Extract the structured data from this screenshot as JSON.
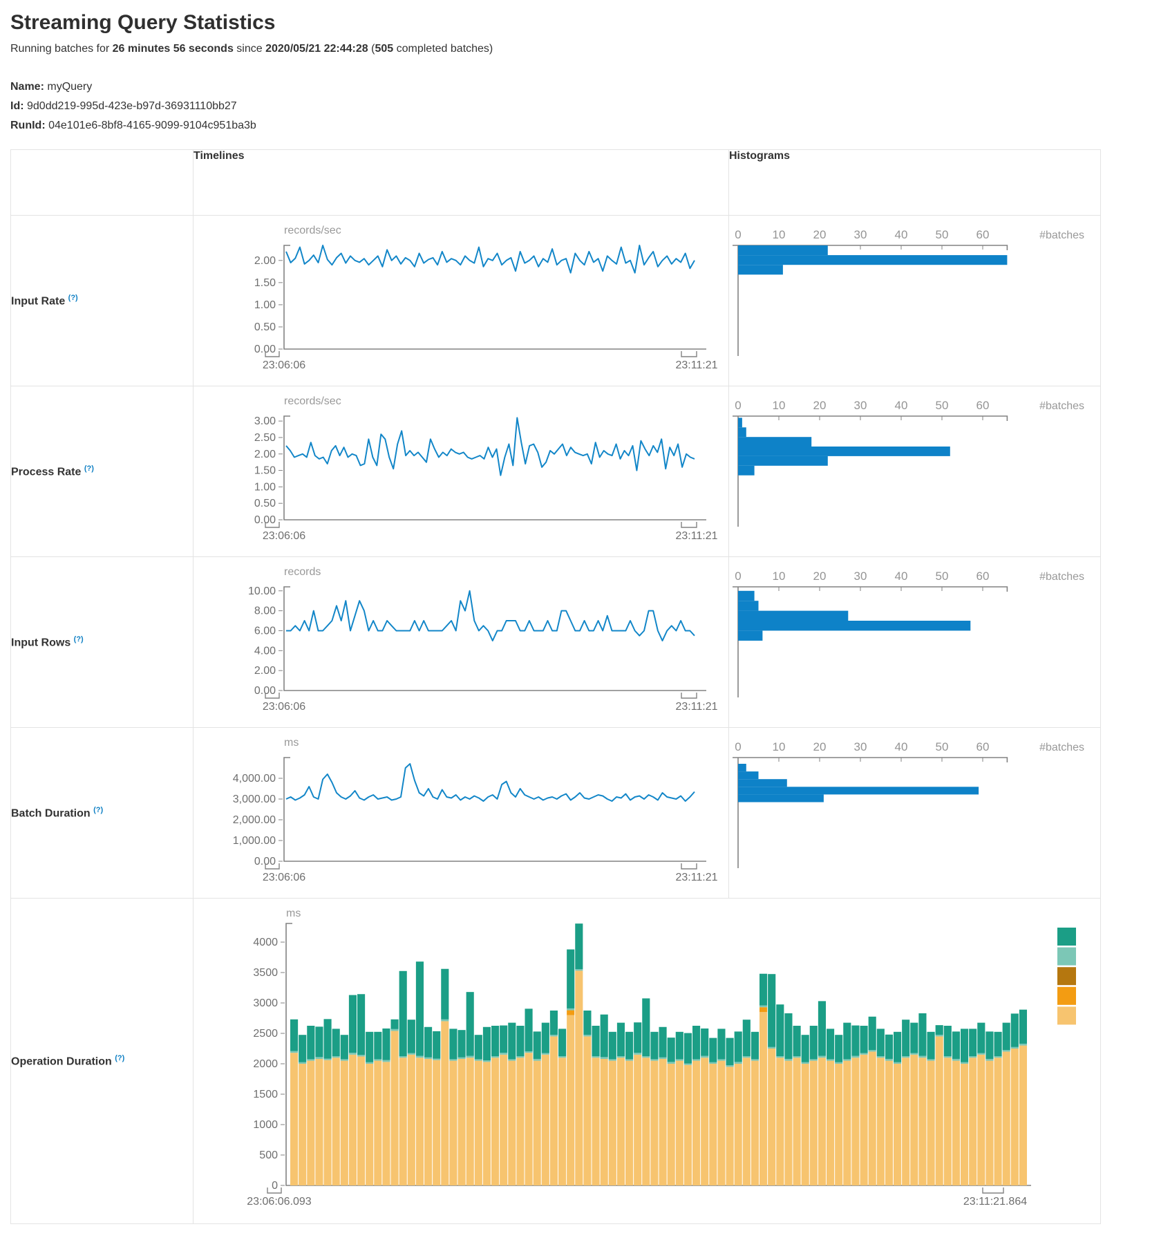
{
  "header": {
    "title": "Streaming Query Statistics",
    "running_prefix": "Running batches for",
    "duration": "26 minutes 56 seconds",
    "since_word": "since",
    "start_time": "2020/05/21 22:44:28",
    "paren_open": "(",
    "completed_batches": "505",
    "completed_suffix": "completed batches)"
  },
  "meta": {
    "name_label": "Name:",
    "name": "myQuery",
    "id_label": "Id:",
    "id": "9d0dd219-995d-423e-b97d-36931110bb27",
    "runid_label": "RunId:",
    "runid": "04e101e6-8bf8-4165-9099-9104c951ba3b"
  },
  "table": {
    "col_timelines": "Timelines",
    "col_histograms": "Histograms",
    "rows": [
      {
        "label": "Input Rate",
        "help": "(?)"
      },
      {
        "label": "Process Rate",
        "help": "(?)"
      },
      {
        "label": "Input Rows",
        "help": "(?)"
      },
      {
        "label": "Batch Duration",
        "help": "(?)"
      },
      {
        "label": "Operation Duration",
        "help": "(?)"
      }
    ]
  },
  "colors": {
    "line": "#1286c8",
    "bar": "#0e82c8",
    "axis": "#828282",
    "op": {
      "teal": "#1b9e86",
      "light_teal": "#7cc7b6",
      "ochre": "#b5770f",
      "orange": "#f39c12",
      "tan": "#f7c46f"
    }
  },
  "chart_data": [
    {
      "name": "input-rate-timeline",
      "kind": "line",
      "type": "line",
      "title": "Input Rate",
      "unit": "records/sec",
      "x_start": "23:06:06",
      "x_end": "23:11:21",
      "ymax": 2.34,
      "y_tick_values": [
        0,
        0.5,
        1,
        1.5,
        2
      ],
      "y_tick_labels": [
        "0.00",
        "0.50",
        "1.00",
        "1.50",
        "2.00"
      ],
      "values": [
        2.2,
        1.95,
        2.05,
        2.3,
        1.92,
        2,
        2.12,
        1.95,
        2.34,
        2.02,
        1.9,
        2.06,
        2.16,
        1.94,
        2.1,
        2,
        1.96,
        2.04,
        1.9,
        2,
        2.1,
        1.86,
        2.24,
        2,
        2.1,
        1.92,
        2.06,
        2,
        1.86,
        2.16,
        1.94,
        2.02,
        2.06,
        1.9,
        2.2,
        1.96,
        2.04,
        2,
        1.9,
        2.1,
        2,
        1.94,
        2.3,
        1.86,
        2.04,
        2,
        2.16,
        1.9,
        2,
        2.06,
        1.76,
        2.2,
        1.94,
        2,
        2.1,
        1.86,
        2.04,
        1.96,
        2.26,
        1.9,
        2,
        2.04,
        1.72,
        2.16,
        2,
        1.9,
        2.2,
        1.96,
        2.04,
        1.76,
        2.1,
        2,
        1.92,
        2.3,
        1.94,
        2,
        1.72,
        2.34,
        1.9,
        2.06,
        2.2,
        1.86,
        2,
        2.1,
        1.92,
        2.04,
        1.96,
        2.16,
        1.82,
        2
      ]
    },
    {
      "name": "input-rate-histogram",
      "kind": "hbar",
      "type": "bar",
      "title": "Input Rate histogram",
      "xlabel": "#batches",
      "x_ticks": [
        0,
        10,
        20,
        30,
        40,
        50,
        60
      ],
      "ymax": 2.34,
      "value_range": [
        1.68,
        2.34
      ],
      "counts": [
        22,
        66,
        11
      ]
    },
    {
      "name": "process-rate-timeline",
      "kind": "line",
      "type": "line",
      "title": "Process Rate",
      "unit": "records/sec",
      "x_start": "23:06:06",
      "x_end": "23:11:21",
      "ymax": 3.15,
      "y_tick_values": [
        0,
        0.5,
        1,
        1.5,
        2,
        2.5,
        3
      ],
      "y_tick_labels": [
        "0.00",
        "0.50",
        "1.00",
        "1.50",
        "2.00",
        "2.50",
        "3.00"
      ],
      "values": [
        2.25,
        2.1,
        1.9,
        1.95,
        2,
        1.9,
        2.35,
        1.95,
        1.85,
        1.9,
        1.7,
        2.1,
        2.25,
        1.95,
        2.2,
        1.9,
        2,
        1.95,
        1.65,
        1.7,
        2.45,
        1.9,
        1.65,
        2.6,
        2.45,
        1.9,
        1.55,
        2.3,
        2.7,
        1.95,
        2.1,
        1.95,
        2.05,
        1.9,
        1.75,
        2.45,
        2.15,
        1.9,
        2.05,
        1.95,
        2.15,
        2.05,
        2,
        2.05,
        1.9,
        1.85,
        1.9,
        1.95,
        1.85,
        2.2,
        1.9,
        2.15,
        1.35,
        1.9,
        2.3,
        1.65,
        3.1,
        2.35,
        1.7,
        2.25,
        2.3,
        2.05,
        1.6,
        1.75,
        2.1,
        2,
        2.15,
        2.3,
        1.95,
        2.2,
        2.05,
        2,
        1.95,
        2,
        1.7,
        2.35,
        1.9,
        2.1,
        2,
        1.95,
        2.3,
        1.85,
        2.1,
        1.95,
        2.25,
        1.5,
        2.4,
        2.15,
        1.95,
        2.25,
        2.05,
        2.45,
        1.55,
        2.2,
        1.95,
        2.3,
        1.6,
        2,
        1.9,
        1.85
      ]
    },
    {
      "name": "process-rate-histogram",
      "kind": "hbar",
      "type": "bar",
      "title": "Process Rate histogram",
      "xlabel": "#batches",
      "x_ticks": [
        0,
        10,
        20,
        30,
        40,
        50,
        60
      ],
      "ymax": 3.15,
      "value_range": [
        1.35,
        3.1
      ],
      "counts": [
        1,
        2,
        18,
        52,
        22,
        4
      ]
    },
    {
      "name": "input-rows-timeline",
      "kind": "line",
      "type": "line",
      "title": "Input Rows",
      "unit": "records",
      "x_start": "23:06:06",
      "x_end": "23:11:21",
      "ymax": 10.4,
      "y_tick_values": [
        0,
        2,
        4,
        6,
        8,
        10
      ],
      "y_tick_labels": [
        "0.00",
        "2.00",
        "4.00",
        "6.00",
        "8.00",
        "10.00"
      ],
      "values": [
        6,
        6,
        6.5,
        6,
        7,
        6,
        8,
        6,
        6,
        6.5,
        7,
        8.5,
        7,
        9,
        6,
        7.5,
        9,
        8,
        6,
        7,
        6,
        6,
        7,
        6.5,
        6,
        6,
        6,
        6,
        7,
        6,
        7,
        6,
        6,
        6,
        6,
        6.5,
        7,
        6,
        9,
        8,
        10,
        7,
        6,
        6.5,
        6,
        5,
        6,
        6,
        7,
        7,
        7,
        6,
        6,
        7,
        6,
        6,
        6,
        7,
        6,
        6,
        8,
        8,
        7,
        6,
        6,
        7,
        6,
        6,
        7,
        6,
        7.5,
        6,
        6,
        6,
        6,
        7,
        6,
        5.5,
        6,
        8,
        8,
        6,
        5,
        6,
        6.5,
        6,
        7,
        6,
        6,
        5.5
      ]
    },
    {
      "name": "input-rows-histogram",
      "kind": "hbar",
      "type": "bar",
      "title": "Input Rows histogram",
      "xlabel": "#batches",
      "x_ticks": [
        0,
        10,
        20,
        30,
        40,
        50,
        60
      ],
      "ymax": 10.4,
      "value_range": [
        5,
        10
      ],
      "counts": [
        4,
        5,
        27,
        57,
        6
      ]
    },
    {
      "name": "batch-duration-timeline",
      "kind": "line",
      "type": "line",
      "title": "Batch Duration",
      "unit": "ms",
      "x_start": "23:06:06",
      "x_end": "23:11:21",
      "ymax": 5000,
      "y_tick_values": [
        0,
        1000,
        2000,
        3000,
        4000
      ],
      "y_tick_labels": [
        "0.00",
        "1,000.00",
        "2,000.00",
        "3,000.00",
        "4,000.00"
      ],
      "values": [
        3000,
        3100,
        2950,
        3050,
        3200,
        3600,
        3100,
        3000,
        3950,
        4200,
        3800,
        3300,
        3100,
        3000,
        3150,
        3400,
        3050,
        2950,
        3100,
        3200,
        3000,
        3050,
        3100,
        2950,
        3000,
        3100,
        4500,
        4700,
        3900,
        3300,
        3150,
        3500,
        3100,
        3000,
        3450,
        3100,
        3050,
        3200,
        2950,
        3100,
        3000,
        3150,
        3050,
        2900,
        3100,
        3200,
        3000,
        3700,
        3850,
        3300,
        3100,
        3500,
        3200,
        3100,
        3000,
        3100,
        2950,
        3050,
        3100,
        3000,
        3150,
        3250,
        2950,
        3100,
        3300,
        3050,
        3000,
        3100,
        3200,
        3150,
        3000,
        2900,
        3100,
        3050,
        3250,
        2950,
        3100,
        3150,
        3000,
        3200,
        3100,
        2950,
        3300,
        3100,
        3050,
        3000,
        3150,
        2900,
        3100,
        3350
      ]
    },
    {
      "name": "batch-duration-histogram",
      "kind": "hbar",
      "type": "bar",
      "title": "Batch Duration histogram",
      "xlabel": "#batches",
      "x_ticks": [
        0,
        10,
        20,
        30,
        40,
        50,
        60
      ],
      "ymax": 5000,
      "value_range": [
        2850,
        4700
      ],
      "counts": [
        2,
        5,
        12,
        59,
        21
      ]
    },
    {
      "name": "operation-duration",
      "kind": "stacked",
      "type": "bar",
      "title": "Operation Duration",
      "unit": "ms",
      "x_start": "23:06:06.093",
      "x_end": "23:11:21.864",
      "y_tick_values": [
        0,
        500,
        1000,
        1500,
        2000,
        2500,
        3000,
        3500,
        4000
      ],
      "y_tick_labels": [
        "0",
        "500",
        "1000",
        "1500",
        "2000",
        "2500",
        "3000",
        "3500",
        "4000"
      ],
      "segment_order": [
        "tan",
        "orange",
        "light_teal",
        "teal"
      ],
      "legend_colors": [
        "#1b9e86",
        "#7cc7b6",
        "#b5770f",
        "#f39c12",
        "#f7c46f"
      ],
      "bars": [
        [
          2180,
          0,
          30,
          520
        ],
        [
          2000,
          0,
          25,
          450
        ],
        [
          2050,
          0,
          25,
          550
        ],
        [
          2080,
          0,
          30,
          500
        ],
        [
          2060,
          0,
          25,
          650
        ],
        [
          2100,
          0,
          25,
          450
        ],
        [
          2050,
          0,
          25,
          400
        ],
        [
          2150,
          0,
          30,
          950
        ],
        [
          2120,
          0,
          25,
          1000
        ],
        [
          2000,
          0,
          25,
          500
        ],
        [
          2050,
          0,
          25,
          450
        ],
        [
          2030,
          0,
          30,
          520
        ],
        [
          2540,
          0,
          30,
          160
        ],
        [
          2100,
          0,
          25,
          1400
        ],
        [
          2150,
          0,
          25,
          550
        ],
        [
          2100,
          0,
          30,
          1550
        ],
        [
          2080,
          0,
          25,
          500
        ],
        [
          2060,
          0,
          25,
          450
        ],
        [
          2700,
          0,
          30,
          830
        ],
        [
          2050,
          0,
          25,
          500
        ],
        [
          2080,
          0,
          25,
          450
        ],
        [
          2100,
          0,
          30,
          1050
        ],
        [
          2050,
          0,
          25,
          400
        ],
        [
          2030,
          0,
          25,
          550
        ],
        [
          2100,
          0,
          25,
          500
        ],
        [
          2150,
          0,
          30,
          450
        ],
        [
          2050,
          0,
          25,
          600
        ],
        [
          2100,
          0,
          25,
          500
        ],
        [
          2180,
          0,
          25,
          700
        ],
        [
          2050,
          0,
          30,
          450
        ],
        [
          2150,
          0,
          25,
          500
        ],
        [
          2450,
          0,
          25,
          400
        ],
        [
          2100,
          0,
          25,
          450
        ],
        [
          2800,
          80,
          30,
          970
        ],
        [
          3530,
          0,
          25,
          750
        ],
        [
          2450,
          0,
          25,
          400
        ],
        [
          2100,
          0,
          25,
          500
        ],
        [
          2080,
          0,
          30,
          700
        ],
        [
          2050,
          0,
          25,
          450
        ],
        [
          2100,
          0,
          25,
          550
        ],
        [
          2050,
          0,
          25,
          450
        ],
        [
          2150,
          0,
          30,
          500
        ],
        [
          2100,
          0,
          25,
          950
        ],
        [
          2050,
          0,
          25,
          450
        ],
        [
          2080,
          0,
          25,
          500
        ],
        [
          2000,
          0,
          30,
          400
        ],
        [
          2050,
          0,
          25,
          450
        ],
        [
          1980,
          0,
          25,
          500
        ],
        [
          2050,
          0,
          25,
          550
        ],
        [
          2100,
          0,
          30,
          450
        ],
        [
          2000,
          0,
          25,
          400
        ],
        [
          2050,
          0,
          25,
          500
        ],
        [
          1950,
          0,
          25,
          450
        ],
        [
          2000,
          0,
          30,
          500
        ],
        [
          2100,
          0,
          25,
          600
        ],
        [
          2050,
          0,
          25,
          450
        ],
        [
          2850,
          80,
          30,
          520
        ],
        [
          2250,
          0,
          25,
          1200
        ],
        [
          2100,
          0,
          25,
          850
        ],
        [
          2050,
          0,
          30,
          750
        ],
        [
          2100,
          0,
          25,
          500
        ],
        [
          2000,
          0,
          25,
          450
        ],
        [
          2050,
          0,
          25,
          550
        ],
        [
          2100,
          0,
          30,
          900
        ],
        [
          2050,
          0,
          25,
          500
        ],
        [
          2000,
          0,
          25,
          450
        ],
        [
          2050,
          0,
          25,
          600
        ],
        [
          2100,
          0,
          30,
          500
        ],
        [
          2150,
          0,
          25,
          450
        ],
        [
          2200,
          0,
          25,
          550
        ],
        [
          2100,
          0,
          25,
          450
        ],
        [
          2050,
          0,
          30,
          400
        ],
        [
          2000,
          0,
          25,
          500
        ],
        [
          2100,
          0,
          25,
          600
        ],
        [
          2150,
          0,
          25,
          500
        ],
        [
          2100,
          0,
          30,
          700
        ],
        [
          2050,
          0,
          25,
          450
        ],
        [
          2450,
          0,
          25,
          160
        ],
        [
          2100,
          0,
          25,
          500
        ],
        [
          2050,
          0,
          30,
          450
        ],
        [
          2000,
          0,
          25,
          550
        ],
        [
          2100,
          0,
          25,
          450
        ],
        [
          2150,
          0,
          25,
          500
        ],
        [
          2050,
          0,
          30,
          450
        ],
        [
          2100,
          0,
          25,
          400
        ],
        [
          2200,
          0,
          25,
          450
        ],
        [
          2250,
          0,
          25,
          550
        ],
        [
          2300,
          0,
          30,
          560
        ]
      ]
    }
  ]
}
